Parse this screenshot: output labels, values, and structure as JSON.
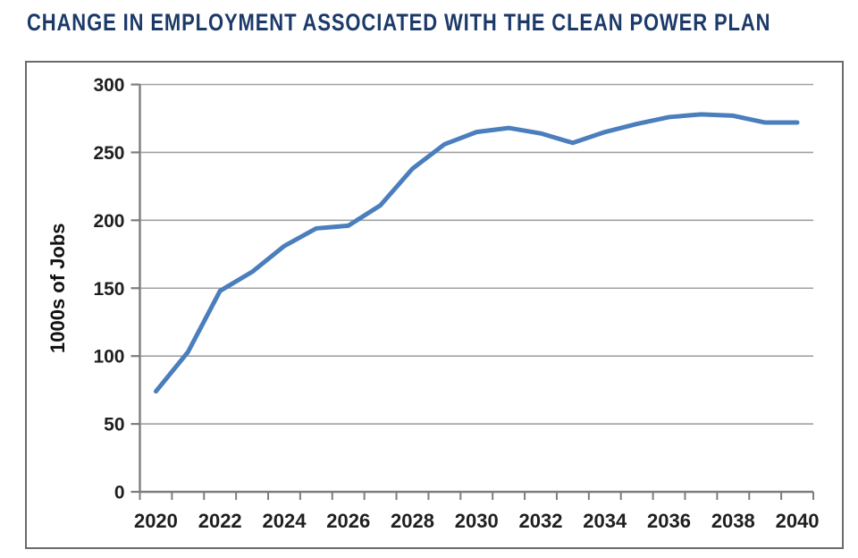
{
  "page": {
    "title": "CHANGE IN EMPLOYMENT ASSOCIATED WITH THE CLEAN POWER PLAN"
  },
  "colors": {
    "title": "#1c3a69",
    "line": "#4a7ebc",
    "gridline": "#a0a0a0",
    "axis": "#7d7d7d",
    "tick_label": "#1f1f1f",
    "axis_label": "#111111",
    "frame_border": "#6b6b6b",
    "background": "#ffffff"
  },
  "chart_data": {
    "type": "line",
    "title": "CHANGE IN EMPLOYMENT ASSOCIATED WITH THE CLEAN POWER PLAN",
    "x": [
      2020,
      2021,
      2022,
      2023,
      2024,
      2025,
      2026,
      2027,
      2028,
      2029,
      2030,
      2031,
      2032,
      2033,
      2034,
      2035,
      2036,
      2037,
      2038,
      2039,
      2040
    ],
    "series": [
      {
        "name": "Change in employment",
        "values": [
          74,
          103,
          148,
          162,
          181,
          194,
          196,
          211,
          238,
          256,
          265,
          268,
          264,
          257,
          265,
          271,
          276,
          278,
          277,
          272,
          272
        ]
      }
    ],
    "xlabel": "",
    "ylabel": "1000s of Jobs",
    "ylim": [
      0,
      300
    ],
    "ytick_step": 50,
    "yticks": [
      0,
      50,
      100,
      150,
      200,
      250,
      300
    ],
    "xtick_labels": [
      "2020",
      "2022",
      "2024",
      "2026",
      "2028",
      "2030",
      "2032",
      "2034",
      "2036",
      "2038",
      "2040"
    ],
    "xtick_label_every": 2,
    "grid": true,
    "legend": "none",
    "line_color": "#4a7ebc"
  }
}
